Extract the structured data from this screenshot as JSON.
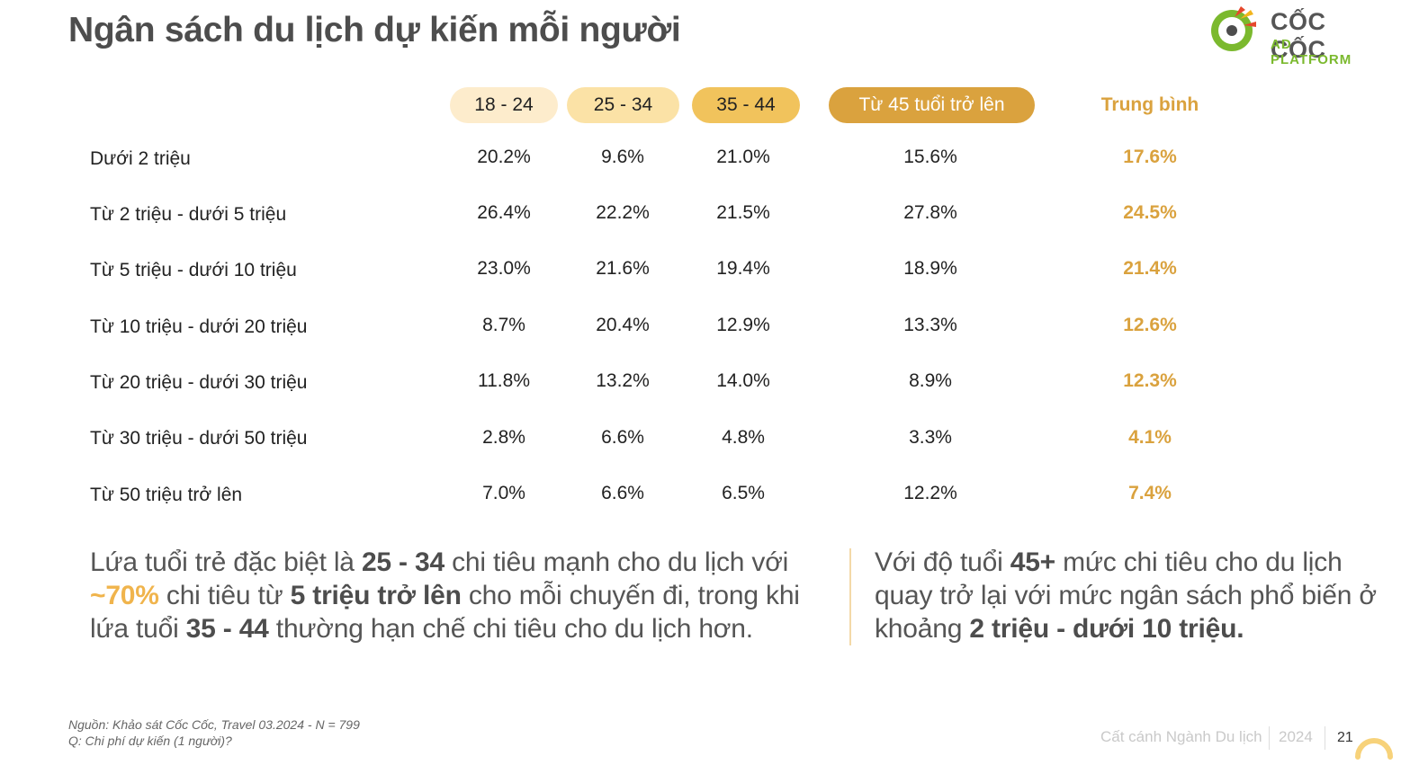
{
  "title": "Ngân sách du lịch dự kiến mỗi người",
  "logo": {
    "name": "CỐC CỐC",
    "sub": "AD PLATFORM",
    "colors": [
      "#7bb92e",
      "#e6472c",
      "#f2b51d"
    ]
  },
  "columns": [
    "18 - 24",
    "25 - 34",
    "35 - 44",
    "Từ 45 tuổi trở lên",
    "Trung bình"
  ],
  "rows": [
    {
      "label": "Dưới 2 triệu",
      "values": [
        "20.2%",
        "9.6%",
        "21.0%",
        "15.6%",
        "17.6%"
      ]
    },
    {
      "label": "Từ 2 triệu - dưới 5 triệu",
      "values": [
        "26.4%",
        "22.2%",
        "21.5%",
        "27.8%",
        "24.5%"
      ]
    },
    {
      "label": "Từ 5 triệu - dưới 10 triệu",
      "values": [
        "23.0%",
        "21.6%",
        "19.4%",
        "18.9%",
        "21.4%"
      ]
    },
    {
      "label": "Từ 10 triệu - dưới 20 triệu",
      "values": [
        "8.7%",
        "20.4%",
        "12.9%",
        "13.3%",
        "12.6%"
      ]
    },
    {
      "label": "Từ 20 triệu - dưới 30 triệu",
      "values": [
        "11.8%",
        "13.2%",
        "14.0%",
        "8.9%",
        "12.3%"
      ]
    },
    {
      "label": "Từ 30 triệu - dưới 50 triệu",
      "values": [
        "2.8%",
        "6.6%",
        "4.8%",
        "3.3%",
        "4.1%"
      ]
    },
    {
      "label": "Từ 50 triệu trở lên",
      "values": [
        "7.0%",
        "6.6%",
        "6.5%",
        "12.2%",
        "7.4%"
      ]
    }
  ],
  "insight_left": {
    "p1": "Lứa tuổi trẻ đặc biệt là ",
    "b1": "25 - 34",
    "p2": " chi tiêu mạnh cho du lịch với ",
    "hl": "~70%",
    "p3": " chi tiêu từ ",
    "b2": "5 triệu trở lên",
    "p4": " cho mỗi chuyến đi, trong khi lứa tuổi ",
    "b3": "35 - 44",
    "p5": " thường hạn chế chi tiêu cho du lịch hơn."
  },
  "insight_right": {
    "p1": "Với độ tuổi ",
    "b1": "45+",
    "p2": " mức chi tiêu cho du lịch quay trở lại với mức ngân sách phổ biến ở khoảng ",
    "b2": "2 triệu - dưới 10 triệu."
  },
  "source": "Nguồn:  Khảo sát Cốc Cốc, Travel 03.2024 - N = 799",
  "question": "Q: Chi phí dự kiến (1 người)?",
  "footer": {
    "title": "Cất cánh Ngành Du lịch",
    "year": "2024",
    "page": "21"
  },
  "colors": {
    "accent": "#daa23e",
    "avg_text": "#daa23e",
    "pill_18_24": "#fdeccc",
    "pill_25_34": "#fbe2a6",
    "pill_35_44": "#f1c35c",
    "pill_45": "#daa23e"
  }
}
